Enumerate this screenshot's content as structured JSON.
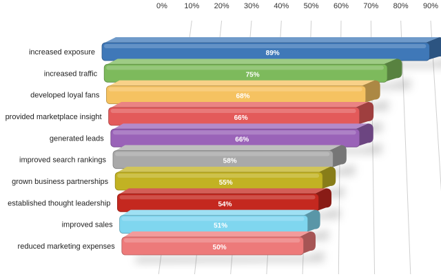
{
  "chart_data": {
    "type": "bar",
    "orientation": "horizontal",
    "categories": [
      "increased exposure",
      "increased traffic",
      "developed loyal fans",
      "provided marketplace insight",
      "generated leads",
      "improved search rankings",
      "grown business partnerships",
      "established thought leadership",
      "improved sales",
      "reduced marketing expenses"
    ],
    "values": [
      89,
      75,
      68,
      66,
      66,
      58,
      55,
      54,
      51,
      50
    ],
    "data_labels": [
      "89%",
      "75%",
      "68%",
      "66%",
      "66%",
      "58%",
      "55%",
      "54%",
      "51%",
      "50%"
    ],
    "colors": [
      "#3f78b8",
      "#7dba5c",
      "#f5c261",
      "#e35a5a",
      "#9a63b8",
      "#a9a9a9",
      "#c2b223",
      "#c4281f",
      "#7fd6ef",
      "#ed7a7a"
    ],
    "xticks": [
      "0%",
      "10%",
      "20%",
      "30%",
      "40%",
      "50%",
      "60%",
      "70%",
      "80%",
      "90%"
    ],
    "xlim": [
      0,
      90
    ],
    "grid": true,
    "axis_position": "top",
    "title": "",
    "xlabel": "",
    "ylabel": ""
  }
}
